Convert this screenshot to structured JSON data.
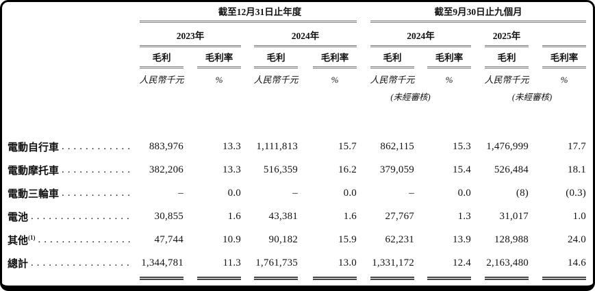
{
  "document": {
    "period_groups": [
      {
        "title": "截至12月31日止年度"
      },
      {
        "title": "截至9月30日止九個月"
      }
    ],
    "year_headers": [
      "2023年",
      "2024年",
      "2024年",
      "2025年"
    ],
    "columns": [
      {
        "label": "毛利",
        "unit": "人民幣千元"
      },
      {
        "label": "毛利率",
        "unit": "%"
      },
      {
        "label": "毛利",
        "unit": "人民幣千元"
      },
      {
        "label": "毛利率",
        "unit": "%"
      },
      {
        "label": "毛利",
        "unit": "人民幣千元"
      },
      {
        "label": "毛利率",
        "unit": "%"
      },
      {
        "label": "毛利",
        "unit": "人民幣千元"
      },
      {
        "label": "毛利率",
        "unit": "%"
      }
    ],
    "unaudited_notes": [
      "(未經審核)",
      "(未經審核)"
    ],
    "rows": [
      {
        "label": "電動自行車",
        "sup": "",
        "values": [
          "883,976",
          "13.3",
          "1,111,813",
          "15.7",
          "862,115",
          "15.3",
          "1,476,999",
          "17.7"
        ]
      },
      {
        "label": "電動摩托車",
        "sup": "",
        "values": [
          "382,206",
          "13.3",
          "516,359",
          "16.2",
          "379,059",
          "15.4",
          "526,484",
          "18.1"
        ]
      },
      {
        "label": "電動三輪車",
        "sup": "",
        "values": [
          "–",
          "0.0",
          "–",
          "0.0",
          "–",
          "0.0",
          "(8)",
          "(0.3)"
        ]
      },
      {
        "label": "電池",
        "sup": "",
        "values": [
          "30,855",
          "1.6",
          "43,381",
          "1.6",
          "27,767",
          "1.3",
          "31,017",
          "1.0"
        ]
      },
      {
        "label": "其他",
        "sup": "(1)",
        "values": [
          "47,744",
          "10.9",
          "90,182",
          "15.9",
          "62,231",
          "13.9",
          "128,988",
          "24.0"
        ]
      }
    ],
    "total": {
      "label": "總計",
      "values": [
        "1,344,781",
        "11.3",
        "1,761,735",
        "13.0",
        "1,331,172",
        "12.4",
        "2,163,480",
        "14.6"
      ]
    }
  }
}
